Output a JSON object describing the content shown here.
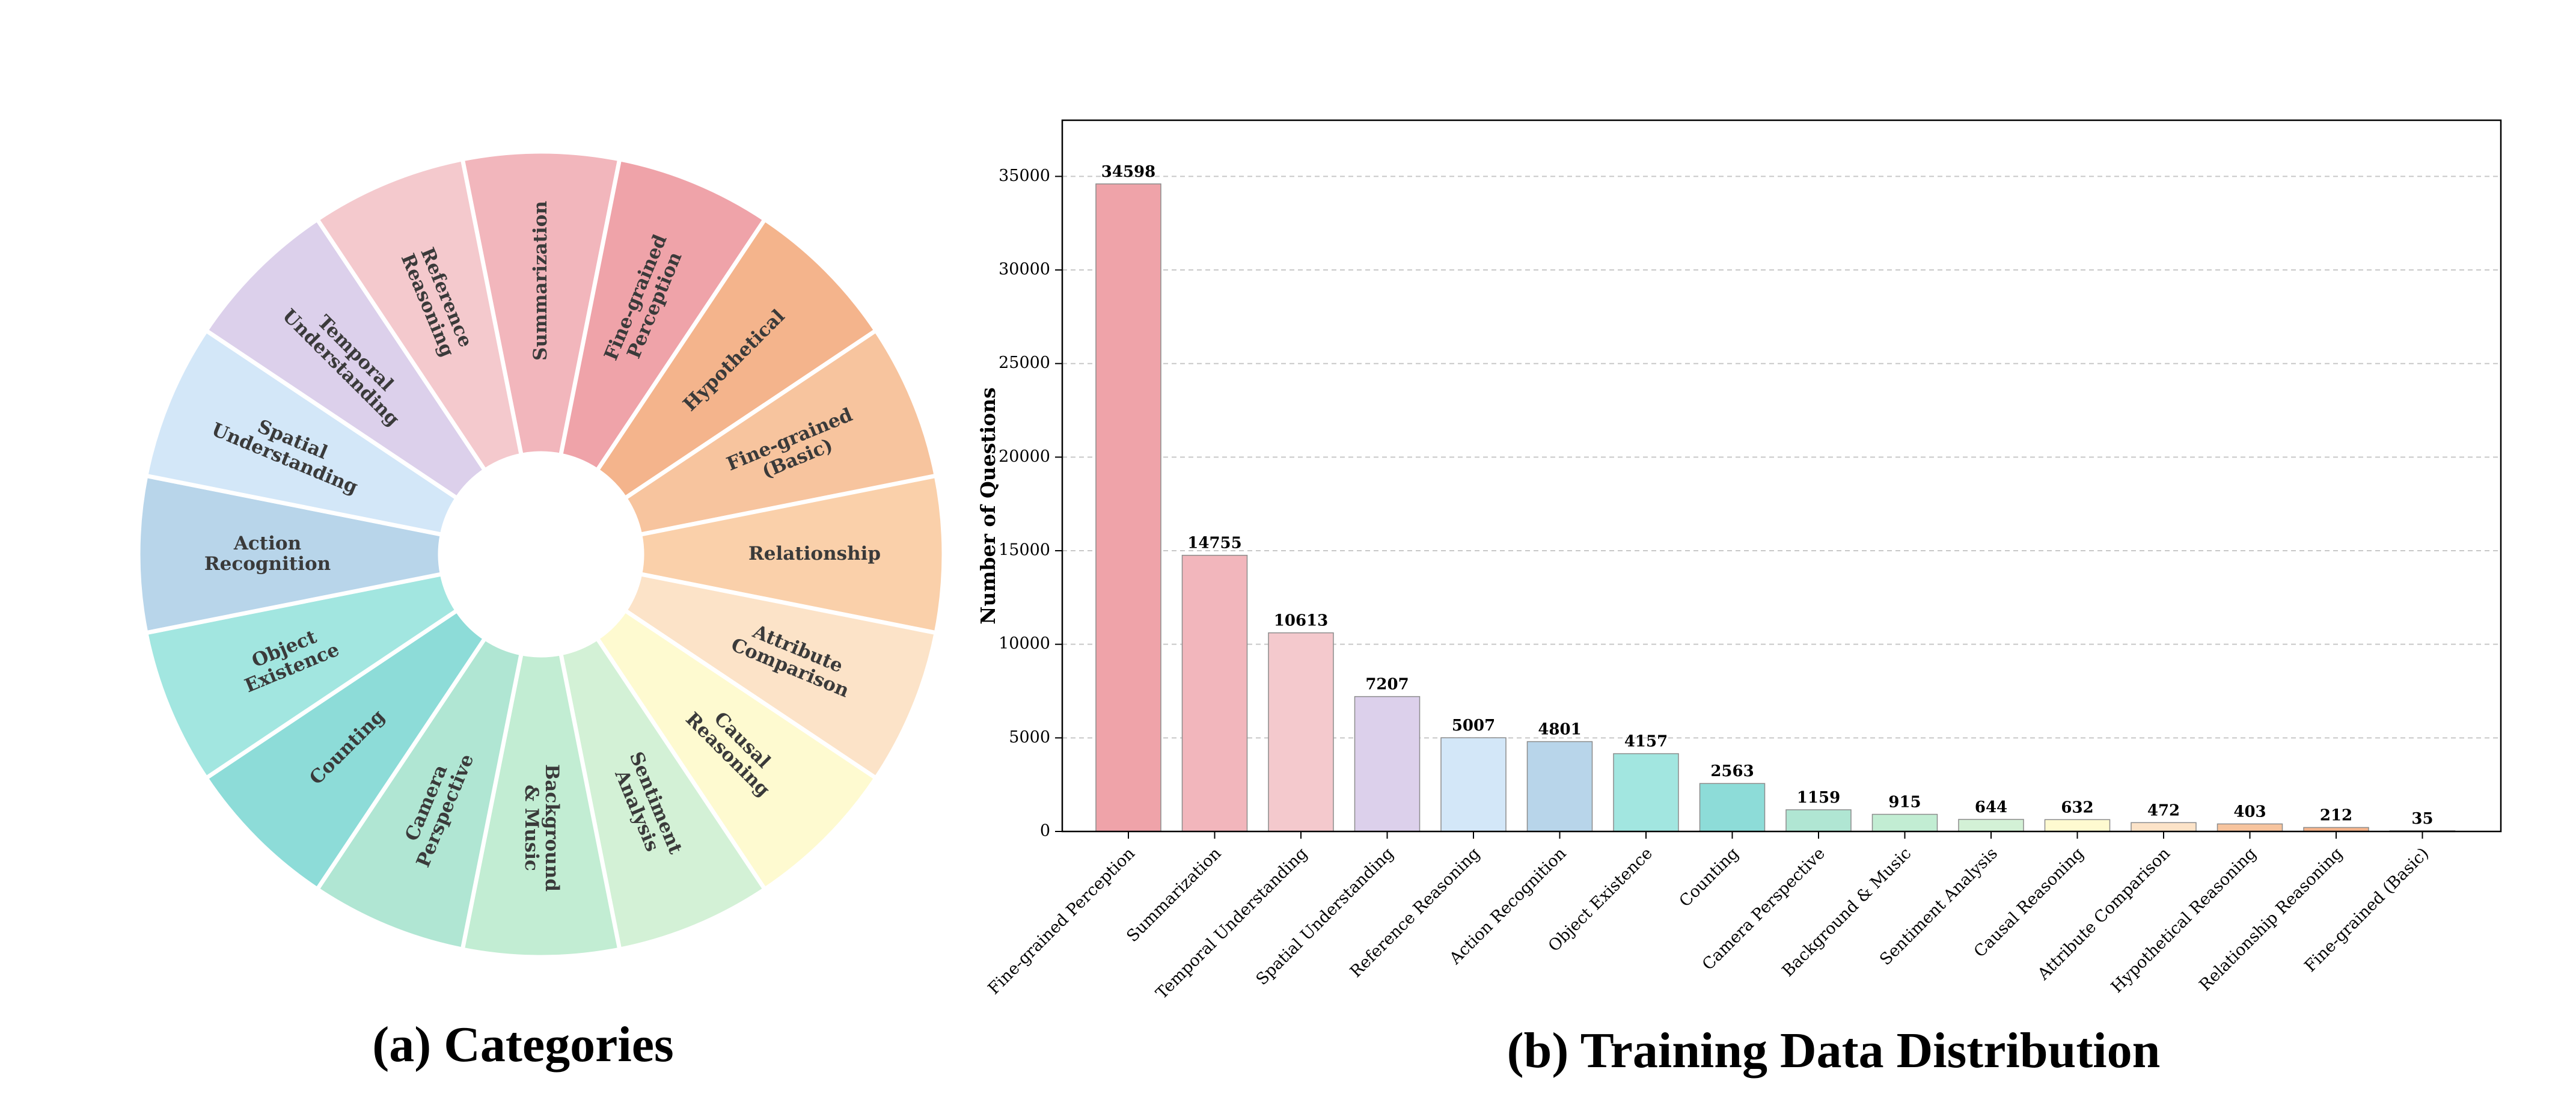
{
  "captions": {
    "left": "(a) Categories",
    "right": "(b) Training Data Distribution"
  },
  "chart_data": [
    {
      "type": "pie",
      "variant": "donut",
      "legend": "none",
      "slices": [
        {
          "label": [
            "Summarization"
          ],
          "color": "#F2B6BC"
        },
        {
          "label": [
            "Fine-grained",
            "Perception"
          ],
          "color": "#EFA3A9"
        },
        {
          "label": [
            "Hypothetical"
          ],
          "color": "#F4B48C"
        },
        {
          "label": [
            "Fine-grained",
            "(Basic)"
          ],
          "color": "#F7C49E"
        },
        {
          "label": [
            "Relationship"
          ],
          "color": "#FAD0AA"
        },
        {
          "label": [
            "Attribute",
            "Comparison"
          ],
          "color": "#FCE3C8"
        },
        {
          "label": [
            "Causal",
            "Reasoning"
          ],
          "color": "#FEFAD0"
        },
        {
          "label": [
            "Sentiment",
            "Analysis"
          ],
          "color": "#D3F1D6"
        },
        {
          "label": [
            "Background",
            "& Music"
          ],
          "color": "#C2EDD3"
        },
        {
          "label": [
            "Camera",
            "Perspective"
          ],
          "color": "#B0E6D3"
        },
        {
          "label": [
            "Counting"
          ],
          "color": "#8DDCD8"
        },
        {
          "label": [
            "Object",
            "Existence"
          ],
          "color": "#A2E6E0"
        },
        {
          "label": [
            "Action",
            "Recognition"
          ],
          "color": "#B8D5EA"
        },
        {
          "label": [
            "Spatial",
            "Understanding"
          ],
          "color": "#D3E7F8"
        },
        {
          "label": [
            "Temporal",
            "Understanding"
          ],
          "color": "#DCD0EB"
        },
        {
          "label": [
            "Reference",
            "Reasoning"
          ],
          "color": "#F4C9CD"
        }
      ]
    },
    {
      "type": "bar",
      "title": "",
      "xlabel": "",
      "ylabel": "Number of Questions",
      "ylim": [
        0,
        38000
      ],
      "yticks": [
        0,
        5000,
        10000,
        15000,
        20000,
        25000,
        30000,
        35000
      ],
      "grid": "horizontal-dashed",
      "categories": [
        "Fine-grained Perception",
        "Summarization",
        "Temporal Understanding",
        "Spatial Understanding",
        "Reference Reasoning",
        "Action Recognition",
        "Object Existence",
        "Counting",
        "Camera Perspective",
        "Background & Music",
        "Sentiment Analysis",
        "Causal Reasoning",
        "Attribute Comparison",
        "Hypothetical Reasoning",
        "Relationship Reasoning",
        "Fine-grained (Basic)"
      ],
      "values": [
        34598,
        14755,
        10613,
        7207,
        5007,
        4801,
        4157,
        2563,
        1159,
        915,
        644,
        632,
        472,
        403,
        212,
        35
      ],
      "colors": [
        "#EFA3A9",
        "#F2B6BC",
        "#F4C9CD",
        "#DCD0EB",
        "#D3E7F8",
        "#B8D5EA",
        "#A2E6E0",
        "#8DDCD8",
        "#B0E6D3",
        "#C2EDD3",
        "#D3F1D6",
        "#FEFAD0",
        "#FCE3C8",
        "#F7C49E",
        "#F4B48C",
        "#EFA3A9"
      ]
    }
  ]
}
